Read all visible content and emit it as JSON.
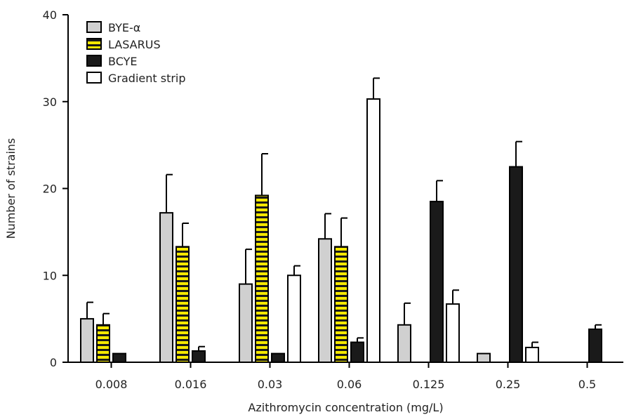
{
  "chart_data": {
    "type": "bar",
    "title": "",
    "xlabel": "Azithromycin concentration (mg/L)",
    "ylabel": "Number of strains",
    "ylim": [
      0,
      40
    ],
    "yticks": [
      "0",
      "10",
      "20",
      "30",
      "40"
    ],
    "categories": [
      "0.008",
      "0.016",
      "0.03",
      "0.06",
      "0.125",
      "0.25",
      "0.5"
    ],
    "legend_position": "top-left",
    "grid": false,
    "series": [
      {
        "name": "BYE-α",
        "fill": "#d0d0d0",
        "pattern": "solid",
        "values": [
          5,
          17.2,
          9,
          14.2,
          4.3,
          1,
          0
        ],
        "errors": [
          1.9,
          4.4,
          4.0,
          2.9,
          2.5,
          0,
          0
        ]
      },
      {
        "name": "LASARUS",
        "fill": "#f5e800",
        "pattern": "stripes",
        "values": [
          4.3,
          13.3,
          19.2,
          13.3,
          0,
          0,
          0
        ],
        "errors": [
          1.3,
          2.7,
          4.8,
          3.3,
          0,
          0,
          0
        ]
      },
      {
        "name": "BCYE",
        "fill": "#1a1a1a",
        "pattern": "solid",
        "values": [
          1,
          1.3,
          1,
          2.3,
          18.5,
          22.5,
          3.8
        ],
        "errors": [
          0,
          0.5,
          0,
          0.5,
          2.4,
          2.9,
          0.5
        ]
      },
      {
        "name": "Gradient strip",
        "fill": "#ffffff",
        "pattern": "solid",
        "values": [
          0,
          0,
          10,
          30.3,
          6.7,
          1.7,
          0
        ],
        "errors": [
          0,
          0,
          1.1,
          2.4,
          1.6,
          0.6,
          0
        ]
      }
    ]
  }
}
